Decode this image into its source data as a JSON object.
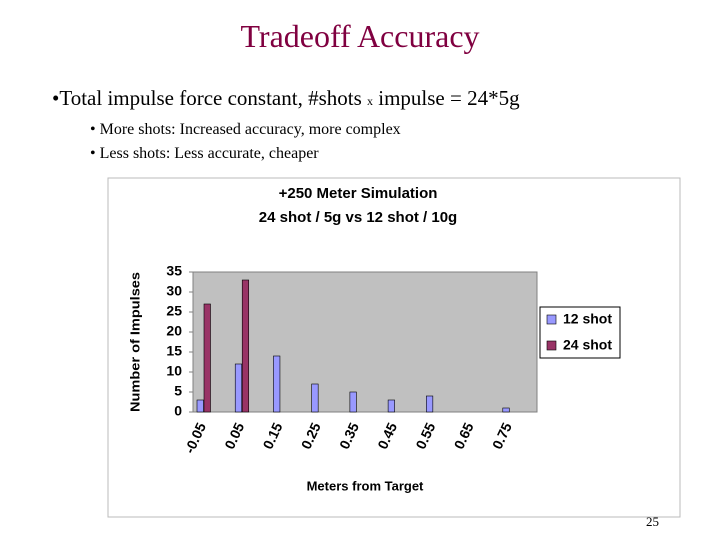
{
  "slide": {
    "title": "Tradeoff Accuracy",
    "bullet": {
      "before": "Total impulse force constant, #shots ",
      "small": "x",
      "after": " impulse = 24*5g"
    },
    "sub_bullets": [
      "More shots: Increased accuracy, more complex",
      "Less shots: Less accurate, cheaper"
    ],
    "page_number": "25"
  },
  "chart_data": {
    "type": "bar",
    "title": [
      "+250 Meter Simulation",
      "24 shot / 5g vs 12 shot / 10g"
    ],
    "x_label": "Meters from Target",
    "y_label": "Number of Impulses",
    "categories": [
      "-0.05",
      "0.05",
      "0.15",
      "0.25",
      "0.35",
      "0.45",
      "0.55",
      "0.65",
      "0.75"
    ],
    "series": [
      {
        "name": "12 shot",
        "color": "#9999ff",
        "values": [
          3,
          12,
          14,
          7,
          5,
          3,
          4,
          0,
          1
        ]
      },
      {
        "name": "24 shot",
        "color": "#993366",
        "values": [
          27,
          33,
          0,
          0,
          0,
          0,
          0,
          0,
          0
        ]
      }
    ],
    "ylim": [
      0,
      35
    ],
    "yticks": [
      0,
      5,
      10,
      15,
      20,
      25,
      30,
      35
    ],
    "grid": false,
    "legend": "right"
  }
}
